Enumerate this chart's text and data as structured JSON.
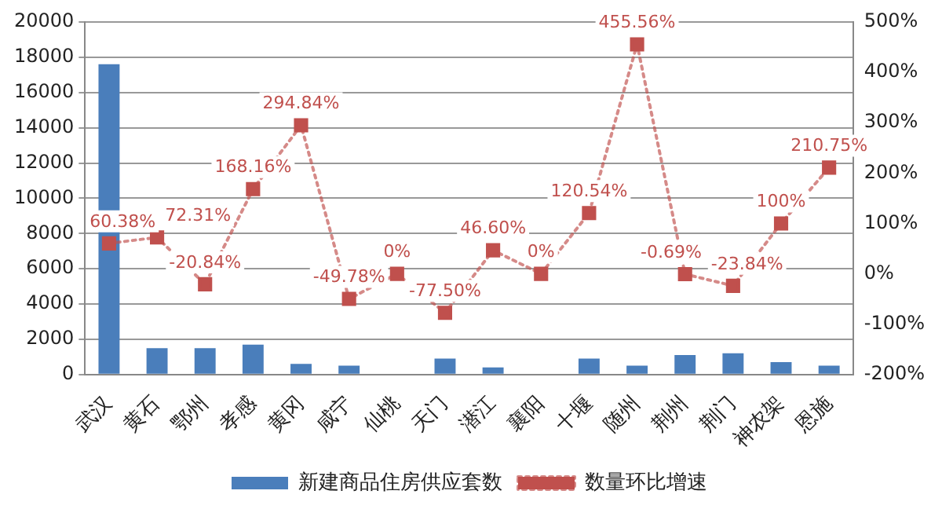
{
  "chart_data": {
    "type": "bar",
    "categories": [
      "武汉",
      "黄石",
      "鄂州",
      "孝感",
      "黄冈",
      "咸宁",
      "仙桃",
      "天门",
      "潜江",
      "襄阳",
      "十堰",
      "随州",
      "荆州",
      "荆门",
      "神农架",
      "恩施"
    ],
    "series": [
      {
        "name": "新建商品住房供应套数",
        "color": "#4a7ebb",
        "values": [
          17600,
          1500,
          1500,
          1700,
          600,
          500,
          0,
          900,
          400,
          0,
          900,
          500,
          1100,
          1200,
          700,
          500
        ]
      },
      {
        "name": "数量环比增速",
        "type": "line",
        "axis": "y2",
        "color": "#c0504d",
        "marker": "square",
        "line_style": "dotted",
        "values": [
          60.38,
          72.31,
          -20.84,
          168.16,
          294.84,
          -49.78,
          0,
          -77.5,
          46.6,
          0,
          120.54,
          455.56,
          -0.69,
          -23.84,
          100,
          210.75
        ],
        "value_labels": [
          "60.38%",
          "72.31%",
          "-20.84%",
          "168.16%",
          "294.84%",
          "-49.78%",
          "0%",
          "-77.50%",
          "46.60%",
          "0%",
          "120.54%",
          "455.56%",
          "-0.69%",
          "-23.84%",
          "100%",
          "210.75%"
        ]
      }
    ],
    "ylim": [
      0,
      20000
    ],
    "yticks": [
      0,
      2000,
      4000,
      6000,
      8000,
      10000,
      12000,
      14000,
      16000,
      18000,
      20000
    ],
    "y2lim": [
      -200,
      500
    ],
    "y2ticks": [
      {
        "value": -200,
        "label": "-200%"
      },
      {
        "value": -100,
        "label": "-100%"
      },
      {
        "value": 0,
        "label": "0%"
      },
      {
        "value": 100,
        "label": "100%"
      },
      {
        "value": 200,
        "label": "200%"
      },
      {
        "value": 300,
        "label": "300%"
      },
      {
        "value": 400,
        "label": "400%"
      },
      {
        "value": 500,
        "label": "500%"
      }
    ],
    "grid": "y",
    "legend": "bottom"
  }
}
